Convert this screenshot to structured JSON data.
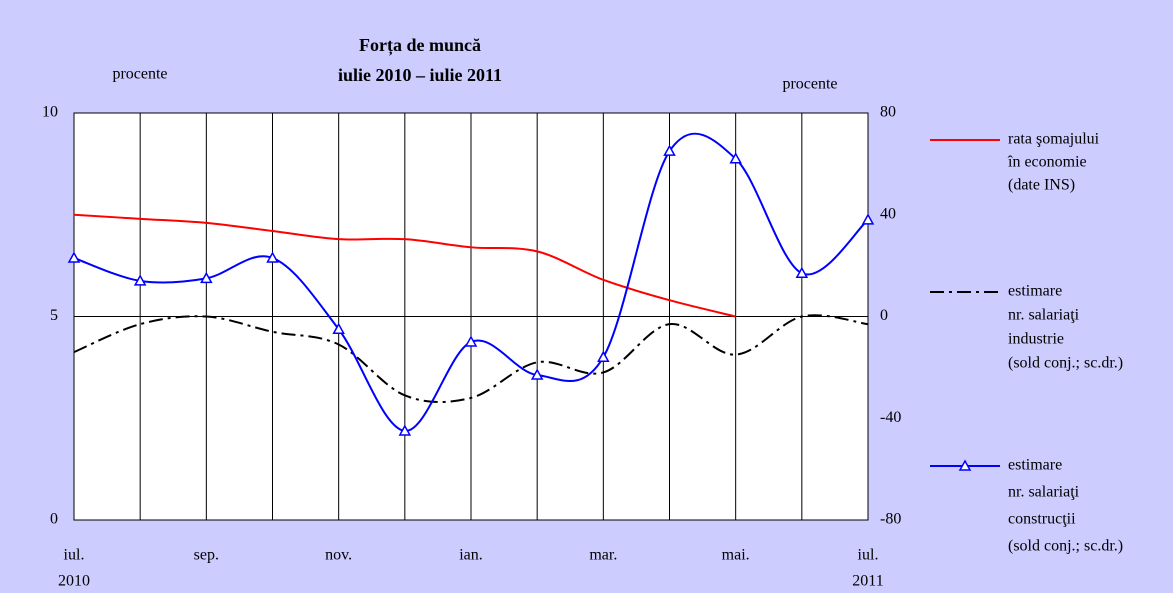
{
  "chart_data": {
    "type": "line",
    "title": "Forța de muncă",
    "subtitle": "iulie 2010 – iulie 2011",
    "y_label": "procente",
    "y2_label": "procente",
    "categories": [
      "iul.",
      null,
      "sep.",
      null,
      "nov.",
      null,
      "ian.",
      null,
      "mar.",
      null,
      "mai.",
      null,
      "iul."
    ],
    "annotations": [
      "2010",
      "2011"
    ],
    "ylim": [
      0,
      10
    ],
    "yticks": [
      0,
      5,
      10
    ],
    "y2lim": [
      -80,
      80
    ],
    "y2ticks": [
      -80,
      -40,
      0,
      40,
      80
    ],
    "grid": true,
    "series": [
      {
        "name": [
          "rata şomajului",
          "în economie",
          "(date INS)"
        ],
        "color": "#ff0000",
        "style": "solid",
        "values": [
          7.5,
          7.4,
          7.3,
          7.1,
          6.9,
          6.9,
          6.7,
          6.6,
          5.9,
          5.4,
          5.0,
          null,
          null
        ]
      },
      {
        "name": [
          "estimare",
          "nr. salariaţi",
          "industrie",
          "(sold conj.; sc.dr.)"
        ],
        "color": "#000000",
        "style": "dashdot",
        "axis": "y2",
        "values": [
          -14,
          -3,
          0,
          -6,
          -11,
          -31,
          -32,
          -18,
          -22,
          -3,
          -15,
          0,
          -3
        ]
      },
      {
        "name": [
          "estimare",
          "nr. salariaţi",
          "construcţii",
          "(sold conj.; sc.dr.)"
        ],
        "color": "#0000ff",
        "style": "solid",
        "marker": "triangle",
        "axis": "y2",
        "values": [
          23,
          14,
          15,
          23,
          -5,
          -45,
          -10,
          -23,
          -16,
          65,
          62,
          17,
          38
        ]
      }
    ]
  }
}
